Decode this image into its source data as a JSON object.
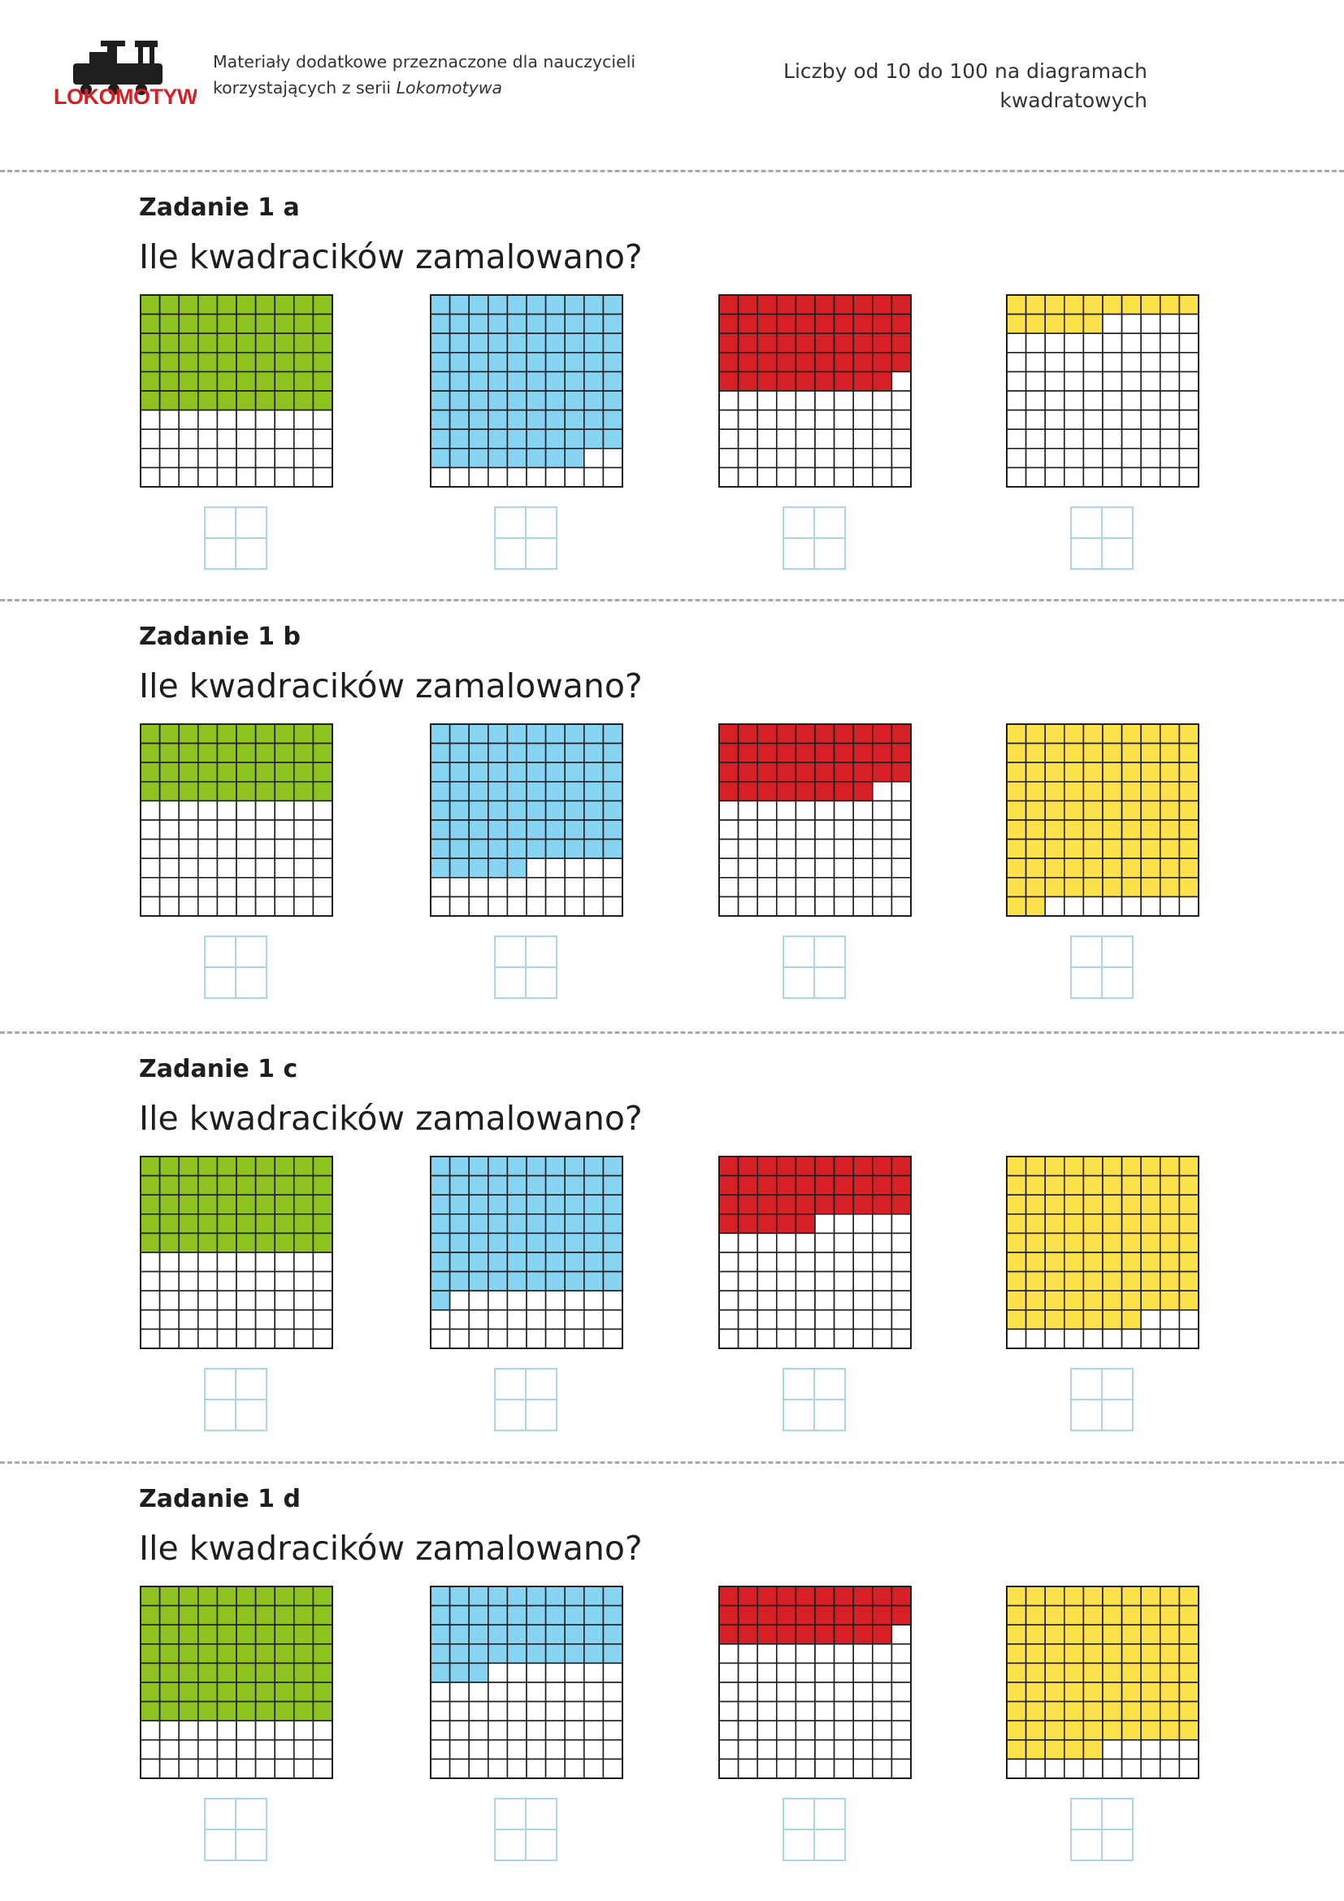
{
  "header": {
    "logo_text": "LOKOMOTYWA",
    "subtitle_line1": "Materiały dodatkowe przeznaczone dla nauczycieli",
    "subtitle_line2_plain": "korzystających z serii ",
    "subtitle_line2_series": "Lokomotywa",
    "doc_title_line1": "Liczby od 10 do 100 na diagramach",
    "doc_title_line2": "kwadratowych"
  },
  "colors": {
    "green": "#8dc21f",
    "blue": "#86d3f2",
    "red": "#d71f26",
    "yellow": "#fde14a",
    "grid_line": "#1e1e1e",
    "answer_box": "#a8d8e8",
    "divider": "#a9a9a9"
  },
  "tasks": [
    {
      "label": "Zadanie 1 a",
      "question": "Ile kwadracików zamalowano?",
      "diagrams": [
        {
          "color": "green",
          "shaded": 60
        },
        {
          "color": "blue",
          "shaded": 88
        },
        {
          "color": "red",
          "shaded": 49
        },
        {
          "color": "yellow",
          "shaded": 15
        }
      ]
    },
    {
      "label": "Zadanie 1 b",
      "question": "Ile kwadracików zamalowano?",
      "diagrams": [
        {
          "color": "green",
          "shaded": 40
        },
        {
          "color": "blue",
          "shaded": 75
        },
        {
          "color": "red",
          "shaded": 38
        },
        {
          "color": "yellow",
          "shaded": 92
        }
      ]
    },
    {
      "label": "Zadanie 1 c",
      "question": "Ile kwadracików zamalowano?",
      "diagrams": [
        {
          "color": "green",
          "shaded": 50
        },
        {
          "color": "blue",
          "shaded": 71
        },
        {
          "color": "red",
          "shaded": 35
        },
        {
          "color": "yellow",
          "shaded": 87
        }
      ]
    },
    {
      "label": "Zadanie 1 d",
      "question": "Ile kwadracików zamalowano?",
      "diagrams": [
        {
          "color": "green",
          "shaded": 70
        },
        {
          "color": "blue",
          "shaded": 43
        },
        {
          "color": "red",
          "shaded": 29
        },
        {
          "color": "yellow",
          "shaded": 85
        }
      ]
    }
  ]
}
